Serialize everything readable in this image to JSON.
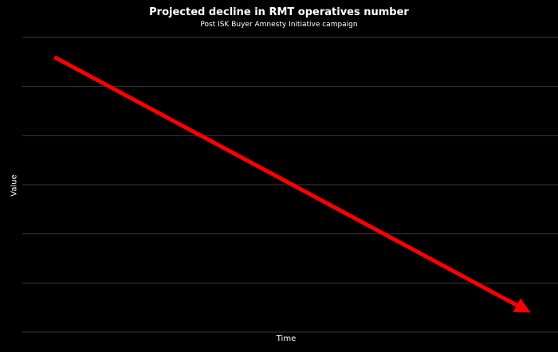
{
  "chart_data": {
    "type": "line",
    "title": "Projected decline in RMT operatives number",
    "subtitle": "Post ISK Buyer Amnesty Initiative campaign",
    "xlabel": "Time",
    "ylabel": "Value",
    "grid": true,
    "ylim": [
      0,
      6
    ],
    "xlim": [
      0,
      1
    ],
    "series": [
      {
        "values": [
          {
            "x": 0.06,
            "y": 5.6
          },
          {
            "x": 0.94,
            "y": 0.45
          }
        ],
        "color": "#ff0000",
        "arrow_end": true
      }
    ]
  },
  "colors": {
    "background": "#000000",
    "gridline": "#3a3a3a",
    "text": "#ffffff",
    "series": "#ff0000"
  }
}
